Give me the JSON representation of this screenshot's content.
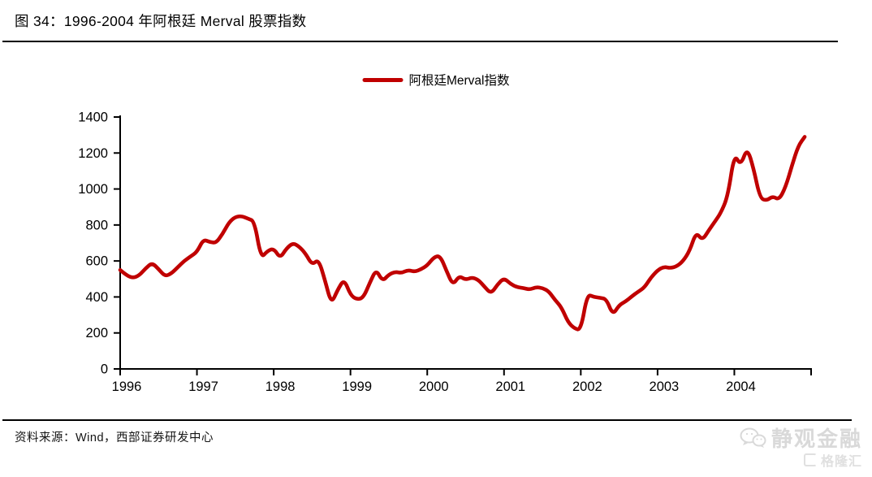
{
  "header": {
    "title": "图 34：1996-2004 年阿根廷 Merval 股票指数"
  },
  "legend": {
    "label": "阿根廷Merval指数",
    "color": "#C00000"
  },
  "footer": {
    "source": "资料来源：Wind，西部证券研发中心"
  },
  "watermark": {
    "wechat_name": "静观金融",
    "gelonghui_name": "格隆汇"
  },
  "chart_data": {
    "type": "line",
    "title": "1996-2004 年阿根廷 Merval 股票指数",
    "xlabel": "",
    "ylabel": "",
    "x_start_year": 1996,
    "points_per_year": 12,
    "xticks": [
      "1996",
      "1997",
      "1998",
      "1999",
      "2000",
      "2001",
      "2002",
      "2003",
      "2004"
    ],
    "yticks": [
      0,
      200,
      400,
      600,
      800,
      1000,
      1200,
      1400
    ],
    "ylim": [
      0,
      1400
    ],
    "grid": false,
    "legend_position": "top-center",
    "axis_color": "#000000",
    "series": [
      {
        "name": "阿根廷Merval指数",
        "color": "#C00000",
        "values": [
          550,
          520,
          505,
          520,
          560,
          590,
          555,
          515,
          530,
          565,
          600,
          625,
          650,
          720,
          705,
          700,
          750,
          815,
          845,
          850,
          835,
          820,
          615,
          655,
          670,
          615,
          670,
          700,
          680,
          640,
          578,
          610,
          495,
          360,
          440,
          500,
          410,
          386,
          395,
          477,
          554,
          487,
          525,
          540,
          533,
          550,
          540,
          553,
          575,
          620,
          630,
          545,
          465,
          518,
          495,
          509,
          495,
          455,
          418,
          470,
          505,
          473,
          455,
          450,
          441,
          455,
          450,
          432,
          382,
          341,
          259,
          225,
          215,
          415,
          400,
          395,
          388,
          300,
          355,
          375,
          404,
          430,
          455,
          510,
          548,
          568,
          560,
          570,
          600,
          655,
          760,
          715,
          770,
          820,
          875,
          965,
          1195,
          1130,
          1230,
          1115,
          950,
          935,
          960,
          940,
          1010,
          1130,
          1240,
          1290
        ]
      }
    ]
  }
}
